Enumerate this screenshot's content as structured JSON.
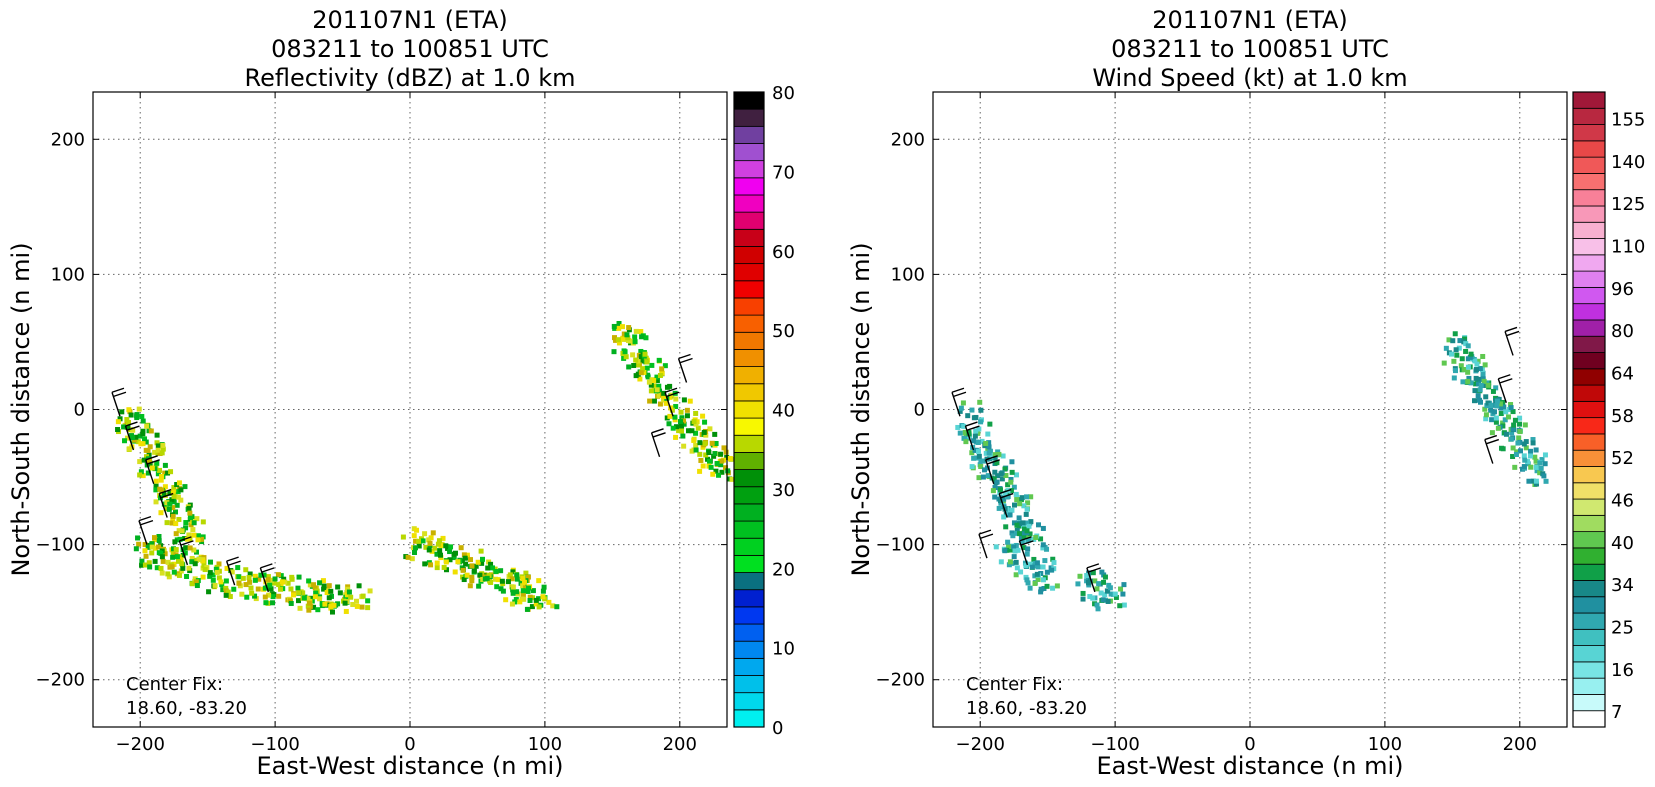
{
  "chart_data": [
    {
      "type": "heatmap",
      "title_lines": [
        "201107N1 (ETA)",
        "083211 to 100851 UTC",
        "Reflectivity (dBZ) at 1.0 km"
      ],
      "xlabel": "East-West distance (n mi)",
      "ylabel": "North-South distance (n mi)",
      "xlim": [
        -235,
        235
      ],
      "ylim": [
        -235,
        235
      ],
      "xticks": [
        -200,
        -100,
        0,
        100,
        200
      ],
      "yticks": [
        -200,
        -100,
        0,
        100,
        200
      ],
      "xticklabels": [
        "−200",
        "−100",
        "0",
        "100",
        "200"
      ],
      "yticklabels": [
        "−200",
        "−100",
        "0",
        "100",
        "200"
      ],
      "grid": true,
      "annotation_lines": [
        "Center Fix:",
        "18.60, -83.20"
      ],
      "colorbar": {
        "min": 0,
        "max": 80,
        "ticks": [
          0,
          10,
          20,
          30,
          40,
          50,
          60,
          70,
          80
        ],
        "labels": [
          "0",
          "10",
          "20",
          "30",
          "40",
          "50",
          "60",
          "70",
          "80"
        ],
        "colors": [
          "#00f0f0",
          "#00d8ec",
          "#00c0ea",
          "#00a8ee",
          "#0088f0",
          "#0060f0",
          "#0038f0",
          "#0020d0",
          "#0a7080",
          "#00e020",
          "#00d020",
          "#00c020",
          "#00b020",
          "#00a010",
          "#009008",
          "#60b000",
          "#b8d800",
          "#f8f800",
          "#f0e000",
          "#f0c800",
          "#f0b000",
          "#f09000",
          "#f07800",
          "#f86000",
          "#f84000",
          "#f00000",
          "#e00000",
          "#d00000",
          "#c80018",
          "#e00070",
          "#f000c0",
          "#f000f0",
          "#d040e0",
          "#a050d0",
          "#7040a0",
          "#402040",
          "#000000"
        ]
      },
      "echo_color_values_dbz": [
        24,
        28,
        32,
        36,
        40
      ],
      "echo_regions": [
        {
          "x": [
            -210,
            -160
          ],
          "y": [
            0,
            -100
          ]
        },
        {
          "x": [
            -200,
            -140
          ],
          "y": [
            -100,
            -125
          ]
        },
        {
          "x": [
            -140,
            -40
          ],
          "y": [
            -125,
            -140
          ]
        },
        {
          "x": [
            0,
            100
          ],
          "y": [
            -95,
            -140
          ]
        },
        {
          "x": [
            155,
            230
          ],
          "y": [
            60,
            -45
          ]
        }
      ]
    },
    {
      "type": "heatmap",
      "title_lines": [
        "201107N1 (ETA)",
        "083211 to 100851 UTC",
        "Wind Speed (kt) at 1.0 km"
      ],
      "xlabel": "East-West distance (n mi)",
      "ylabel": "North-South distance (n mi)",
      "xlim": [
        -235,
        235
      ],
      "ylim": [
        -235,
        235
      ],
      "xticks": [
        -200,
        -100,
        0,
        100,
        200
      ],
      "yticks": [
        -200,
        -100,
        0,
        100,
        200
      ],
      "xticklabels": [
        "−200",
        "−100",
        "0",
        "100",
        "200"
      ],
      "yticklabels": [
        "−200",
        "−100",
        "0",
        "100",
        "200"
      ],
      "grid": true,
      "annotation_lines": [
        "Center Fix:",
        "18.60, -83.20"
      ],
      "colorbar": {
        "ticks_labels": [
          "7",
          "16",
          "25",
          "34",
          "40",
          "46",
          "52",
          "58",
          "64",
          "80",
          "96",
          "110",
          "125",
          "140",
          "155"
        ],
        "colors": [
          "#ffffff",
          "#c8fafa",
          "#98f0f0",
          "#78e4e4",
          "#58d4d4",
          "#40c0c0",
          "#30a8b0",
          "#2090a0",
          "#188888",
          "#10a048",
          "#30b030",
          "#60c850",
          "#a0dc60",
          "#d0e870",
          "#f0e068",
          "#f8c850",
          "#f89038",
          "#f86028",
          "#f82818",
          "#e01010",
          "#c00808",
          "#900000",
          "#700020",
          "#801848",
          "#a020a8",
          "#c030e0",
          "#d058f0",
          "#e080f0",
          "#f0a8f0",
          "#f8c0e8",
          "#f8b0d0",
          "#f898b8",
          "#f88098",
          "#f87070",
          "#f05858",
          "#e84848",
          "#d03848",
          "#b82840",
          "#a01838"
        ]
      },
      "echo_regions": [
        {
          "x": [
            -215,
            -160
          ],
          "y": [
            0,
            -100
          ]
        },
        {
          "x": [
            -180,
            -150
          ],
          "y": [
            -100,
            -125
          ]
        },
        {
          "x": [
            -125,
            -100
          ],
          "y": [
            -125,
            -140
          ]
        },
        {
          "x": [
            150,
            210
          ],
          "y": [
            50,
            -45
          ]
        }
      ]
    }
  ]
}
